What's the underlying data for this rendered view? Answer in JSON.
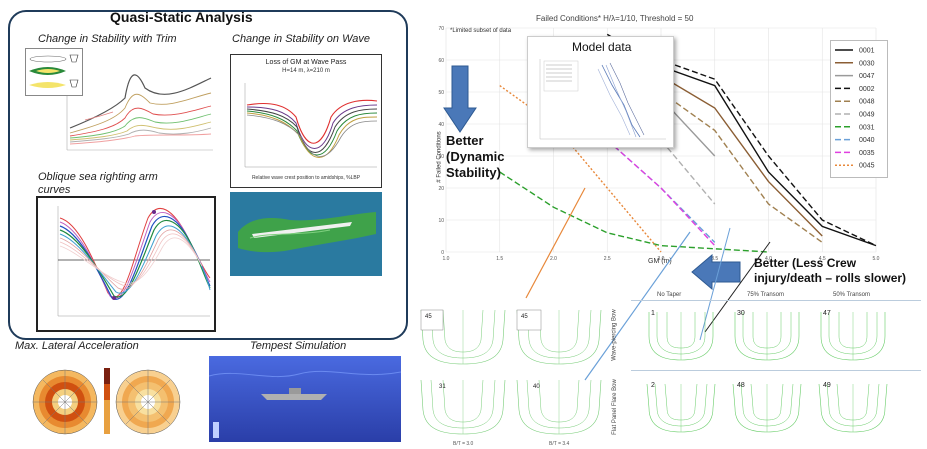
{
  "quasi": {
    "title": "Quasi-Static Analysis",
    "trim_title": "Change in Stability with Trim",
    "wave_title": "Change in Stability on Wave",
    "oblique_title_1": "Oblique sea righting arm",
    "oblique_title_2": "curves",
    "wave_chart_title": "Loss of GM at Wave Pass",
    "wave_chart_subtitle": "H=14 m, λ=210 m",
    "wave_chart_xlabel": "Relative wave crest position to amidships, %LBP"
  },
  "bottom_left": {
    "lat_title": "Max. Lateral Acceleration",
    "tempest_title": "Tempest Simulation"
  },
  "failed_chart": {
    "title": "Failed Conditions* H/λ=1/10, Threshold = 50",
    "note": "*Limited subset of data",
    "ylabel": "# Failed Conditions",
    "xlabel": "GM (m)",
    "overlay_title": "Model data",
    "xticks": [
      "1.0",
      "1.5",
      "2.0",
      "2.5",
      "3.0",
      "3.5",
      "4.0",
      "4.5",
      "5.0"
    ],
    "yticks": [
      "70",
      "60",
      "50",
      "40",
      "30",
      "20",
      "10",
      "0"
    ]
  },
  "chart_data": {
    "type": "line",
    "title": "Failed Conditions* H/λ=1/10, Threshold = 50",
    "xlabel": "GM (m)",
    "ylabel": "# Failed Conditions",
    "xlim": [
      1.0,
      5.0
    ],
    "ylim": [
      0,
      70
    ],
    "series": [
      {
        "name": "0001",
        "color": "#111111",
        "dash": "",
        "x": [
          2.5,
          3.0,
          3.5,
          4.0,
          4.5,
          5.0
        ],
        "y": [
          68,
          58,
          52,
          25,
          8,
          2
        ]
      },
      {
        "name": "0030",
        "color": "#8b5e34",
        "dash": "",
        "x": [
          2.5,
          3.0,
          3.5,
          4.0,
          4.5
        ],
        "y": [
          65,
          55,
          45,
          22,
          5
        ]
      },
      {
        "name": "0047",
        "color": "#9a9a9a",
        "dash": "",
        "x": [
          2.0,
          2.5,
          3.0,
          3.5
        ],
        "y": [
          60,
          55,
          48,
          30
        ]
      },
      {
        "name": "0002",
        "color": "#111111",
        "dash": "6,3",
        "x": [
          2.5,
          3.0,
          3.5,
          4.0,
          4.5,
          5.0
        ],
        "y": [
          66,
          60,
          54,
          30,
          10,
          2
        ]
      },
      {
        "name": "0048",
        "color": "#a08050",
        "dash": "6,3",
        "x": [
          2.5,
          3.0,
          3.5,
          4.0,
          4.5
        ],
        "y": [
          60,
          50,
          38,
          15,
          3
        ]
      },
      {
        "name": "0049",
        "color": "#b0b0b0",
        "dash": "6,3",
        "x": [
          2.0,
          2.5,
          3.0,
          3.5
        ],
        "y": [
          55,
          45,
          35,
          15
        ]
      },
      {
        "name": "0031",
        "color": "#2ca02c",
        "dash": "6,3",
        "x": [
          1.5,
          2.0,
          2.5,
          3.0,
          3.5,
          4.0
        ],
        "y": [
          25,
          14,
          6,
          2,
          1,
          0
        ]
      },
      {
        "name": "0040",
        "color": "#6aa0d8",
        "dash": "6,3",
        "x": [
          2.0,
          2.5,
          3.0,
          3.5
        ],
        "y": [
          45,
          35,
          20,
          3
        ]
      },
      {
        "name": "0035",
        "color": "#e040e0",
        "dash": "6,3",
        "x": [
          2.5,
          3.0,
          3.5
        ],
        "y": [
          35,
          20,
          2
        ]
      },
      {
        "name": "0045",
        "color": "#e8883a",
        "dash": "2,2",
        "x": [
          1.5,
          2.0,
          2.5,
          3.0
        ],
        "y": [
          52,
          40,
          20,
          0
        ]
      }
    ]
  },
  "annotations": {
    "better_dynamic_1": "Better",
    "better_dynamic_2": "(Dynamic",
    "better_dynamic_3": "Stability)",
    "better_crew_1": "Better (Less Crew",
    "better_crew_2": "injury/death – rolls slower)"
  },
  "hull_grid": {
    "col_headers": [
      "No Taper",
      "75% Transom",
      "50% Transom"
    ],
    "row_labels": [
      "Wave-piercing Bow",
      "Flat Panel Flare Bow"
    ],
    "ids": [
      "1",
      "30",
      "47",
      "2",
      "48",
      "49"
    ]
  },
  "bottom_hulls": {
    "ids": [
      "45",
      "45",
      "31",
      "40"
    ],
    "bottom_labels": [
      "B/T = 3.0",
      "B/T = 3.4"
    ]
  }
}
